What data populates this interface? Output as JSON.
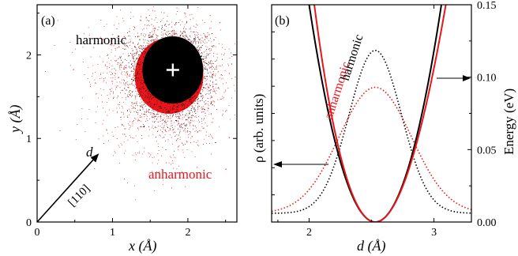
{
  "colors": {
    "black": "#000000",
    "red": "#e8151b",
    "white": "#ffffff"
  },
  "chart_data": [
    {
      "panel_label": "(a)",
      "type": "scatter",
      "xlabel": "x (Å)",
      "ylabel": "y (Å)",
      "xlim": [
        0,
        2.65
      ],
      "ylim": [
        0,
        2.6
      ],
      "xticks": [
        "0",
        "1",
        "2"
      ],
      "yticks": [
        "0",
        "1",
        "2"
      ],
      "series": [
        {
          "name": "harmonic",
          "color": "#000000",
          "center": [
            1.8,
            1.82
          ],
          "spread": [
            0.23,
            0.23
          ]
        },
        {
          "name": "anharmonic",
          "color": "#e8151b",
          "center": [
            1.75,
            1.75
          ],
          "spread": [
            0.35,
            0.35
          ]
        }
      ],
      "marker": {
        "symbol": "+",
        "x": 1.8,
        "y": 1.82
      },
      "annotations": [
        {
          "text": "harmonic",
          "color": "#000000"
        },
        {
          "text": "anharmonic",
          "color": "#e8151b"
        },
        {
          "text": "[110]",
          "color": "#000000"
        },
        {
          "text": "d",
          "color": "#000000"
        }
      ],
      "arrow": {
        "from": [
          0,
          0
        ],
        "to": [
          0.82,
          0.82
        ]
      }
    },
    {
      "panel_label": "(b)",
      "type": "line",
      "xlabel": "d (Å)",
      "ylabel_left": "ρ (arb. units)",
      "ylabel_right": "Energy (eV)",
      "xlim": [
        1.7,
        3.3
      ],
      "ylim_right": [
        0,
        0.15
      ],
      "xticks": [
        "2",
        "3"
      ],
      "yticks_right": [
        "0.00",
        "0.05",
        "0.10",
        "0.15"
      ],
      "series": [
        {
          "name": "harmonic",
          "axis": "right",
          "style": "solid",
          "color": "#000000",
          "x0": 2.53,
          "k": 0.535
        },
        {
          "name": "anharmonic",
          "axis": "right",
          "style": "solid",
          "color": "#e8151b",
          "x0": 2.53,
          "k": 0.535,
          "shift": -0.045
        },
        {
          "axis": "left",
          "style": "dotted",
          "color": "#000000",
          "peak": 0.75,
          "mean": 2.53,
          "sigma": 0.21
        },
        {
          "axis": "left",
          "style": "dotted",
          "color": "#e8151b",
          "peak": 0.58,
          "mean": 2.53,
          "sigma": 0.29
        }
      ],
      "annotations": [
        {
          "text": "anharmonic",
          "color": "#e8151b"
        },
        {
          "text": "harmonic",
          "color": "#000000"
        }
      ]
    }
  ]
}
